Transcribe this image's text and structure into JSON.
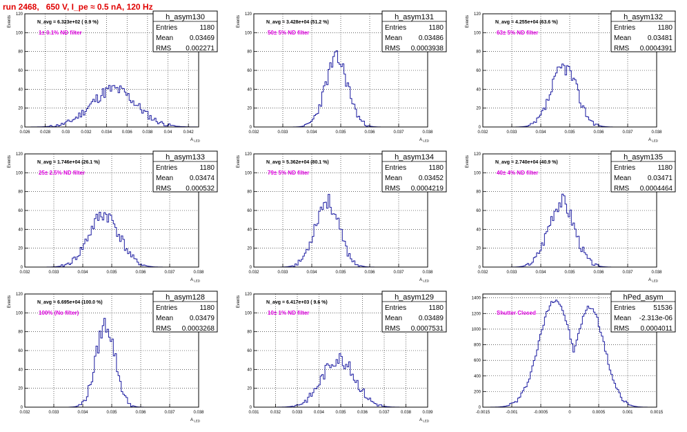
{
  "header": {
    "title": "run 2468,   650 V, I_pe ≈ 0.5 nA, 120 Hz"
  },
  "chart_data": [
    {
      "type": "histogram",
      "name": "h_asym130",
      "navg": "N_avg = 6.323e+02 ( 0.9 %)",
      "filter": "1± 0.1% ND filter",
      "stats": {
        "entries": "1180",
        "mean": "0.03469",
        "rms": "0.002271"
      },
      "xlim": [
        0.026,
        0.043
      ],
      "ylim": [
        0,
        120
      ],
      "xticks": [
        0.026,
        0.028,
        0.03,
        0.032,
        0.034,
        0.036,
        0.038,
        0.04,
        0.042
      ],
      "xtick_labels": [
        "0.026",
        "0.028",
        "0.03",
        "0.032",
        "0.034",
        "0.036",
        "0.038",
        "0.04",
        "0.042"
      ],
      "yticks": [
        0,
        20,
        40,
        60,
        80,
        100,
        120
      ],
      "xlabel": "A",
      "xlabel_sub": "LED",
      "ylabel": "Events",
      "mu": 0.0347,
      "sigma": 0.0022,
      "peak": 40,
      "seed": 11
    },
    {
      "type": "histogram",
      "name": "h_asym131",
      "navg": "N_avg = 3.428e+04 (51.2 %)",
      "filter": "50± 5% ND filter",
      "stats": {
        "entries": "1180",
        "mean": "0.03486",
        "rms": "0.0003938"
      },
      "xlim": [
        0.032,
        0.038
      ],
      "ylim": [
        0,
        120
      ],
      "xticks": [
        0.032,
        0.033,
        0.034,
        0.035,
        0.036,
        0.037,
        0.038
      ],
      "xtick_labels": [
        "0.032",
        "0.033",
        "0.034",
        "0.035",
        "0.036",
        "0.037",
        "0.038"
      ],
      "yticks": [
        0,
        20,
        40,
        60,
        80,
        100,
        120
      ],
      "xlabel": "A",
      "xlabel_sub": "LED",
      "ylabel": "Events",
      "mu": 0.03486,
      "sigma": 0.00039,
      "peak": 72,
      "seed": 23
    },
    {
      "type": "histogram",
      "name": "h_asym132",
      "navg": "N_avg = 4.255e+04 (63.6 %)",
      "filter": "63± 5% ND filter",
      "stats": {
        "entries": "1180",
        "mean": "0.03481",
        "rms": "0.0004391"
      },
      "xlim": [
        0.032,
        0.038
      ],
      "ylim": [
        0,
        120
      ],
      "xticks": [
        0.032,
        0.033,
        0.034,
        0.035,
        0.036,
        0.037,
        0.038
      ],
      "xtick_labels": [
        "0.032",
        "0.033",
        "0.034",
        "0.035",
        "0.036",
        "0.037",
        "0.038"
      ],
      "yticks": [
        0,
        20,
        40,
        60,
        80,
        100,
        120
      ],
      "xlabel": "A",
      "xlabel_sub": "LED",
      "ylabel": "Events",
      "mu": 0.03481,
      "sigma": 0.00044,
      "peak": 64,
      "seed": 37
    },
    {
      "type": "histogram",
      "name": "h_asym133",
      "navg": "N_avg = 1.746e+04 (26.1 %)",
      "filter": "25± 2.5% ND filter",
      "stats": {
        "entries": "1180",
        "mean": "0.03474",
        "rms": "0.000532"
      },
      "xlim": [
        0.032,
        0.038
      ],
      "ylim": [
        0,
        120
      ],
      "xticks": [
        0.032,
        0.033,
        0.034,
        0.035,
        0.036,
        0.037,
        0.038
      ],
      "xtick_labels": [
        "0.032",
        "0.033",
        "0.034",
        "0.035",
        "0.036",
        "0.037",
        "0.038"
      ],
      "yticks": [
        0,
        20,
        40,
        60,
        80,
        100,
        120
      ],
      "xlabel": "A",
      "xlabel_sub": "LED",
      "ylabel": "Events",
      "mu": 0.03474,
      "sigma": 0.00053,
      "peak": 56,
      "seed": 41
    },
    {
      "type": "histogram",
      "name": "h_asym134",
      "navg": "N_avg = 5.362e+04 (80.1 %)",
      "filter": "79± 5% ND filter",
      "stats": {
        "entries": "1180",
        "mean": "0.03452",
        "rms": "0.0004219"
      },
      "xlim": [
        0.032,
        0.038
      ],
      "ylim": [
        0,
        120
      ],
      "xticks": [
        0.032,
        0.033,
        0.034,
        0.035,
        0.036,
        0.037,
        0.038
      ],
      "xtick_labels": [
        "0.032",
        "0.033",
        "0.034",
        "0.035",
        "0.036",
        "0.037",
        "0.038"
      ],
      "yticks": [
        0,
        20,
        40,
        60,
        80,
        100,
        120
      ],
      "xlabel": "A",
      "xlabel_sub": "LED",
      "ylabel": "Events",
      "mu": 0.03452,
      "sigma": 0.00042,
      "peak": 70,
      "seed": 53
    },
    {
      "type": "histogram",
      "name": "h_asym135",
      "navg": "N_avg = 2.740e+04 (40.9 %)",
      "filter": "40± 4% ND filter",
      "stats": {
        "entries": "1180",
        "mean": "0.03471",
        "rms": "0.0004464"
      },
      "xlim": [
        0.032,
        0.038
      ],
      "ylim": [
        0,
        120
      ],
      "xticks": [
        0.032,
        0.033,
        0.034,
        0.035,
        0.036,
        0.037,
        0.038
      ],
      "xtick_labels": [
        "0.032",
        "0.033",
        "0.034",
        "0.035",
        "0.036",
        "0.037",
        "0.038"
      ],
      "yticks": [
        0,
        20,
        40,
        60,
        80,
        100,
        120
      ],
      "xlabel": "A",
      "xlabel_sub": "LED",
      "ylabel": "Events",
      "mu": 0.03471,
      "sigma": 0.00045,
      "peak": 70,
      "seed": 67
    },
    {
      "type": "histogram",
      "name": "h_asym128",
      "navg": "N_avg = 6.695e+04 (100.0 %)",
      "filter": "100% (No filter)",
      "stats": {
        "entries": "1180",
        "mean": "0.03479",
        "rms": "0.0003268"
      },
      "xlim": [
        0.032,
        0.038
      ],
      "ylim": [
        0,
        120
      ],
      "xticks": [
        0.032,
        0.033,
        0.034,
        0.035,
        0.036,
        0.037,
        0.038
      ],
      "xtick_labels": [
        "0.032",
        "0.033",
        "0.034",
        "0.035",
        "0.036",
        "0.037",
        "0.038"
      ],
      "yticks": [
        0,
        20,
        40,
        60,
        80,
        100,
        120
      ],
      "xlabel": "A",
      "xlabel_sub": "LED",
      "ylabel": "Events",
      "mu": 0.03479,
      "sigma": 0.00033,
      "peak": 88,
      "seed": 79
    },
    {
      "type": "histogram",
      "name": "h_asym129",
      "navg": "N_avg = 6.417e+03 ( 9.6 %)",
      "filter": "10± 1% ND filter",
      "stats": {
        "entries": "1180",
        "mean": "0.03489",
        "rms": "0.0007531"
      },
      "xlim": [
        0.031,
        0.039
      ],
      "ylim": [
        0,
        120
      ],
      "xticks": [
        0.031,
        0.032,
        0.033,
        0.034,
        0.035,
        0.036,
        0.037,
        0.038,
        0.039
      ],
      "xtick_labels": [
        "0.031",
        "0.032",
        "0.033",
        "0.034",
        "0.035",
        "0.036",
        "0.037",
        "0.038",
        "0.039"
      ],
      "yticks": [
        0,
        20,
        40,
        60,
        80,
        100,
        120
      ],
      "xlabel": "A",
      "xlabel_sub": "LED",
      "ylabel": "Events",
      "mu": 0.03489,
      "sigma": 0.00075,
      "peak": 52,
      "seed": 83
    },
    {
      "type": "histogram",
      "name": "hPed_asym",
      "navg": "",
      "filter": "Shutter Closed",
      "stats": {
        "entries": "51536",
        "mean": "-2.313e-06",
        "rms": "0.0004011"
      },
      "xlim": [
        -0.0015,
        0.0015
      ],
      "ylim": [
        0,
        1450
      ],
      "xticks": [
        -0.0015,
        -0.001,
        -0.0005,
        0,
        0.0005,
        0.001,
        0.0015
      ],
      "xtick_labels": [
        "-0.0015",
        "-0.001",
        "-0.0005",
        "0",
        "0.0005",
        "0.001",
        "0.0015"
      ],
      "yticks": [
        0,
        200,
        400,
        600,
        800,
        1000,
        1200,
        1400
      ],
      "xlabel": "",
      "xlabel_sub": "",
      "ylabel": "",
      "mu": -2e-06,
      "sigma": 0.0004,
      "peak": 1380,
      "seed": 97,
      "bimodal": true
    }
  ],
  "labels": {
    "entries": "Entries",
    "mean": "Mean",
    "rms": "RMS"
  },
  "colors": {
    "hist": "#1a1aa0",
    "filter_text": "#e000e0",
    "title_text": "#e00000",
    "frame": "#000000"
  }
}
